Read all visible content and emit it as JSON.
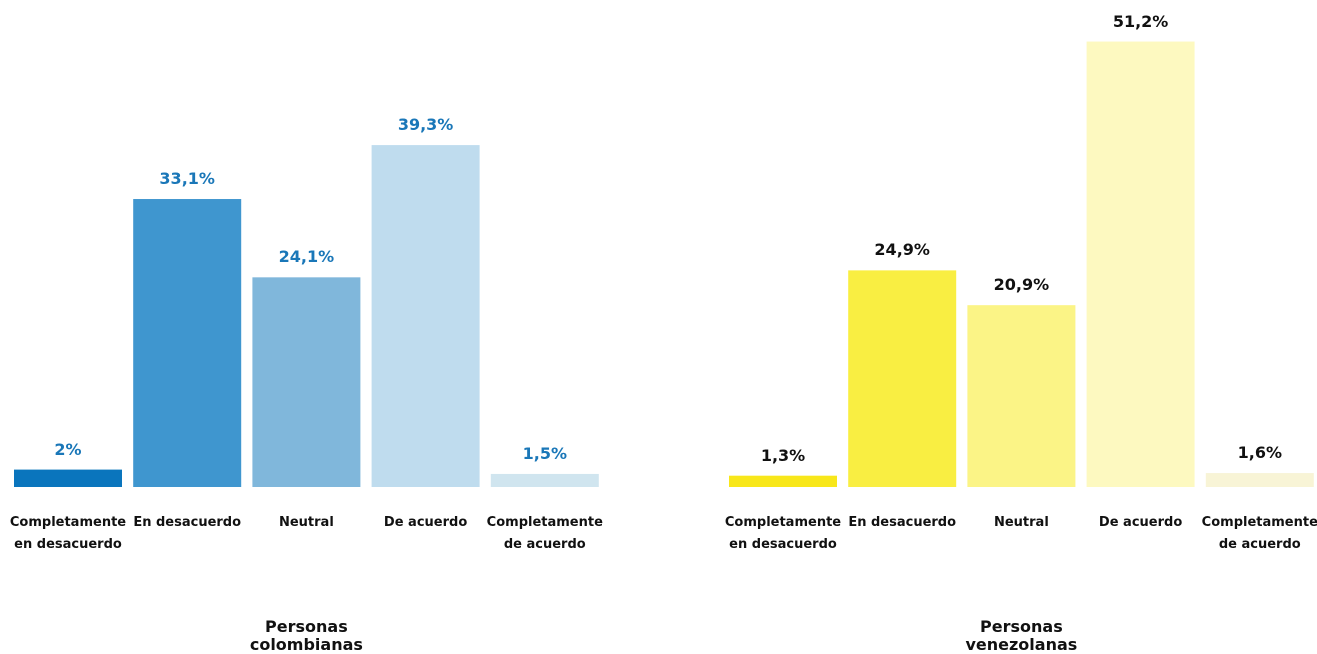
{
  "chart_data": [
    {
      "type": "bar",
      "title": "Personas colombianas",
      "categories": [
        "Completamente en desacuerdo",
        "En desacuerdo",
        "Neutral",
        "De acuerdo",
        "Completamente de acuerdo"
      ],
      "values": [
        2,
        33.1,
        24.1,
        39.3,
        1.5
      ],
      "value_labels": [
        "2%",
        "33,1%",
        "24,1%",
        "39,3%",
        "1,5%"
      ],
      "colors": [
        "#0a75bd",
        "#3f96cf",
        "#80b7db",
        "#bfdcee",
        "#d0e5ef"
      ],
      "label_color": "#1a77b8"
    },
    {
      "type": "bar",
      "title": "Personas venezolanas",
      "categories": [
        "Completamente en desacuerdo",
        "En desacuerdo",
        "Neutral",
        "De acuerdo",
        "Completamente de acuerdo"
      ],
      "values": [
        1.3,
        24.9,
        20.9,
        51.2,
        1.6
      ],
      "value_labels": [
        "1,3%",
        "24,9%",
        "20,9%",
        "51,2%",
        "1,6%"
      ],
      "colors": [
        "#f8e71a",
        "#f9ee42",
        "#fbf486",
        "#fdf9c0",
        "#f8f4d6"
      ],
      "label_color": "#111111"
    }
  ]
}
